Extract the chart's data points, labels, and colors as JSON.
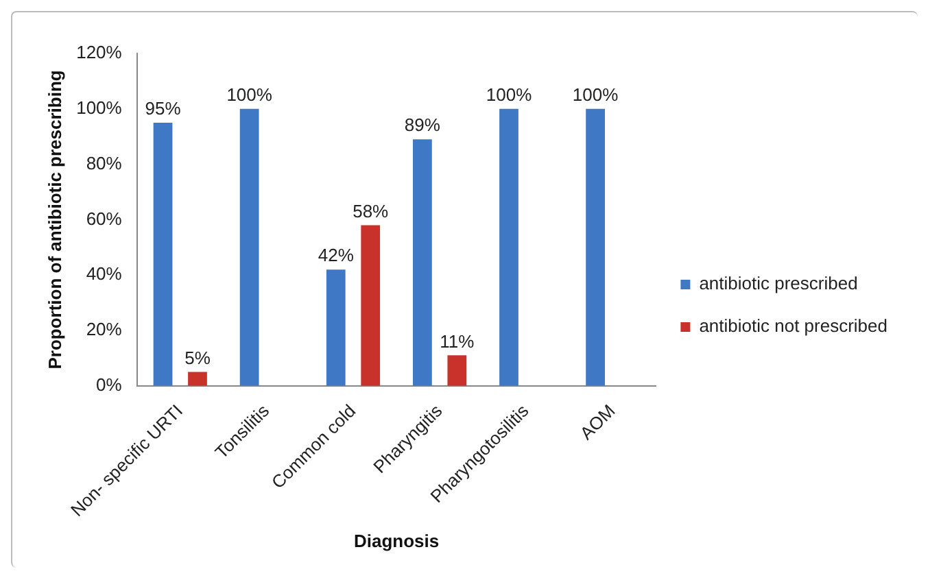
{
  "chart_data": {
    "type": "bar",
    "xlabel": "Diagnosis",
    "ylabel": "Proportion of antibiotic prescribing",
    "categories": [
      "Non- specific URTI",
      "Tonsilitis",
      "Common cold",
      "Pharyngitis",
      "Pharyngotosilitis",
      "AOM"
    ],
    "series": [
      {
        "name": "antibiotic prescribed",
        "color": "#3f78c4",
        "values": [
          95,
          100,
          42,
          89,
          100,
          100
        ],
        "value_labels": [
          "95%",
          "100%",
          "42%",
          "89%",
          "100%",
          "100%"
        ]
      },
      {
        "name": "antibiotic not prescribed",
        "color": "#c8322b",
        "values": [
          5,
          0,
          58,
          11,
          0,
          0
        ],
        "value_labels": [
          "5%",
          null,
          "58%",
          "11%",
          null,
          null
        ]
      }
    ],
    "ylim": [
      0,
      120
    ],
    "yticks": [
      {
        "value": 0,
        "label": "0%"
      },
      {
        "value": 20,
        "label": "20%"
      },
      {
        "value": 40,
        "label": "40%"
      },
      {
        "value": 60,
        "label": "60%"
      },
      {
        "value": 80,
        "label": "80%"
      },
      {
        "value": 100,
        "label": "100%"
      },
      {
        "value": 120,
        "label": "120%"
      }
    ],
    "legend": "right"
  }
}
